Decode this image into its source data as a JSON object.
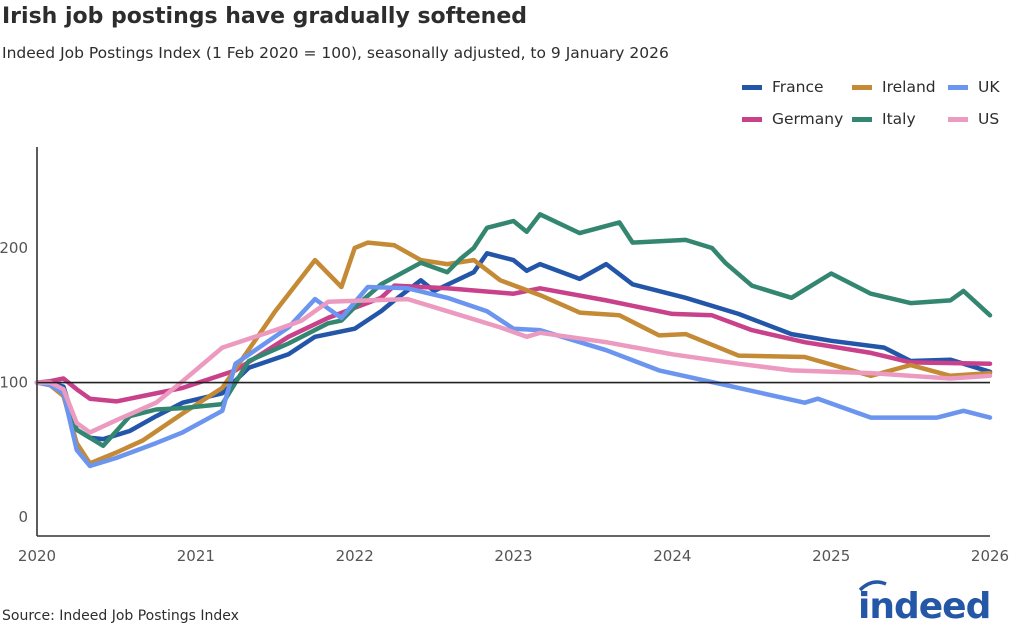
{
  "title": "Irish job postings have gradually softened",
  "subtitle": "Indeed Job Postings Index (1 Feb 2020 = 100), seasonally adjusted, to 9 January 2026",
  "source": "Source: Indeed Job Postings Index",
  "logo_text": "indeed",
  "brand_color": "#2557a7",
  "chart_data": {
    "type": "line",
    "title": "Irish job postings have gradually softened",
    "xlabel": "",
    "ylabel": "",
    "xlim": [
      "2020-01",
      "2026-01"
    ],
    "ylim": [
      -14,
      275
    ],
    "x_ticks": [
      "2020",
      "2021",
      "2022",
      "2023",
      "2024",
      "2025",
      "2026"
    ],
    "y_ticks": [
      "0",
      "100",
      "200"
    ],
    "reference_line": 100,
    "grid": false,
    "legend_position": "top-right",
    "series": [
      {
        "name": "France",
        "color": "#2356a8",
        "points": [
          [
            "2020-01",
            100
          ],
          [
            "2020-02",
            100
          ],
          [
            "2020-03",
            97
          ],
          [
            "2020-04",
            65
          ],
          [
            "2020-05",
            59
          ],
          [
            "2020-06",
            58
          ],
          [
            "2020-08",
            64
          ],
          [
            "2020-10",
            75
          ],
          [
            "2020-12",
            85
          ],
          [
            "2021-03",
            92
          ],
          [
            "2021-05",
            111
          ],
          [
            "2021-08",
            121
          ],
          [
            "2021-10",
            134
          ],
          [
            "2022-01",
            140
          ],
          [
            "2022-03",
            153
          ],
          [
            "2022-04",
            161
          ],
          [
            "2022-06",
            176
          ],
          [
            "2022-07",
            168
          ],
          [
            "2022-10",
            182
          ],
          [
            "2022-11",
            196
          ],
          [
            "2023-01",
            191
          ],
          [
            "2023-02",
            183
          ],
          [
            "2023-03",
            188
          ],
          [
            "2023-06",
            177
          ],
          [
            "2023-08",
            188
          ],
          [
            "2023-10",
            173
          ],
          [
            "2024-02",
            163
          ],
          [
            "2024-06",
            151
          ],
          [
            "2024-10",
            136
          ],
          [
            "2025-01",
            131
          ],
          [
            "2025-05",
            126
          ],
          [
            "2025-07",
            116
          ],
          [
            "2025-10",
            117
          ],
          [
            "2026-01",
            108
          ]
        ]
      },
      {
        "name": "Germany",
        "color": "#c8418a",
        "points": [
          [
            "2020-01",
            100
          ],
          [
            "2020-02",
            101
          ],
          [
            "2020-03",
            103
          ],
          [
            "2020-04",
            95
          ],
          [
            "2020-05",
            88
          ],
          [
            "2020-07",
            86
          ],
          [
            "2020-09",
            90
          ],
          [
            "2020-12",
            96
          ],
          [
            "2021-04",
            109
          ],
          [
            "2021-08",
            134
          ],
          [
            "2021-11",
            148
          ],
          [
            "2022-03",
            163
          ],
          [
            "2022-04",
            172
          ],
          [
            "2022-08",
            170
          ],
          [
            "2023-01",
            166
          ],
          [
            "2023-03",
            170
          ],
          [
            "2023-08",
            161
          ],
          [
            "2024-01",
            151
          ],
          [
            "2024-04",
            150
          ],
          [
            "2024-07",
            139
          ],
          [
            "2024-11",
            130
          ],
          [
            "2025-04",
            122
          ],
          [
            "2025-07",
            115
          ],
          [
            "2026-01",
            114
          ]
        ]
      },
      {
        "name": "Ireland",
        "color": "#c48a35",
        "points": [
          [
            "2020-01",
            100
          ],
          [
            "2020-02",
            98
          ],
          [
            "2020-03",
            90
          ],
          [
            "2020-04",
            55
          ],
          [
            "2020-05",
            40
          ],
          [
            "2020-07",
            48
          ],
          [
            "2020-09",
            57
          ],
          [
            "2020-12",
            77
          ],
          [
            "2021-03",
            96
          ],
          [
            "2021-07",
            153
          ],
          [
            "2021-10",
            191
          ],
          [
            "2021-12",
            171
          ],
          [
            "2022-01",
            200
          ],
          [
            "2022-02",
            204
          ],
          [
            "2022-04",
            202
          ],
          [
            "2022-06",
            191
          ],
          [
            "2022-08",
            188
          ],
          [
            "2022-10",
            191
          ],
          [
            "2022-12",
            176
          ],
          [
            "2023-03",
            165
          ],
          [
            "2023-06",
            152
          ],
          [
            "2023-09",
            150
          ],
          [
            "2023-12",
            135
          ],
          [
            "2024-02",
            136
          ],
          [
            "2024-06",
            120
          ],
          [
            "2024-11",
            119
          ],
          [
            "2025-04",
            105
          ],
          [
            "2025-07",
            113
          ],
          [
            "2025-10",
            105
          ],
          [
            "2026-01",
            107
          ]
        ]
      },
      {
        "name": "Italy",
        "color": "#338670",
        "points": [
          [
            "2020-01",
            100
          ],
          [
            "2020-02",
            99
          ],
          [
            "2020-03",
            92
          ],
          [
            "2020-04",
            65
          ],
          [
            "2020-06",
            53
          ],
          [
            "2020-08",
            75
          ],
          [
            "2020-10",
            80
          ],
          [
            "2020-12",
            81
          ],
          [
            "2021-03",
            84
          ],
          [
            "2021-05",
            116
          ],
          [
            "2021-08",
            129
          ],
          [
            "2021-11",
            144
          ],
          [
            "2021-12",
            146
          ],
          [
            "2022-01",
            156
          ],
          [
            "2022-03",
            173
          ],
          [
            "2022-06",
            189
          ],
          [
            "2022-08",
            182
          ],
          [
            "2022-09",
            192
          ],
          [
            "2022-10",
            200
          ],
          [
            "2022-11",
            215
          ],
          [
            "2023-01",
            220
          ],
          [
            "2023-02",
            212
          ],
          [
            "2023-03",
            225
          ],
          [
            "2023-06",
            211
          ],
          [
            "2023-09",
            219
          ],
          [
            "2023-10",
            204
          ],
          [
            "2024-02",
            206
          ],
          [
            "2024-04",
            200
          ],
          [
            "2024-05",
            189
          ],
          [
            "2024-07",
            172
          ],
          [
            "2024-10",
            163
          ],
          [
            "2025-01",
            181
          ],
          [
            "2025-04",
            166
          ],
          [
            "2025-07",
            159
          ],
          [
            "2025-10",
            161
          ],
          [
            "2025-11",
            168
          ],
          [
            "2026-01",
            150
          ]
        ]
      },
      {
        "name": "UK",
        "color": "#6b95ee",
        "points": [
          [
            "2020-01",
            100
          ],
          [
            "2020-02",
            98
          ],
          [
            "2020-03",
            92
          ],
          [
            "2020-04",
            50
          ],
          [
            "2020-05",
            38
          ],
          [
            "2020-07",
            44
          ],
          [
            "2020-10",
            55
          ],
          [
            "2020-12",
            63
          ],
          [
            "2021-03",
            79
          ],
          [
            "2021-04",
            114
          ],
          [
            "2021-08",
            141
          ],
          [
            "2021-10",
            162
          ],
          [
            "2021-12",
            148
          ],
          [
            "2022-02",
            171
          ],
          [
            "2022-05",
            170
          ],
          [
            "2022-08",
            163
          ],
          [
            "2022-11",
            153
          ],
          [
            "2023-01",
            140
          ],
          [
            "2023-03",
            139
          ],
          [
            "2023-08",
            124
          ],
          [
            "2023-12",
            109
          ],
          [
            "2024-06",
            96
          ],
          [
            "2024-11",
            85
          ],
          [
            "2024-12",
            88
          ],
          [
            "2025-04",
            74
          ],
          [
            "2025-09",
            74
          ],
          [
            "2025-11",
            79
          ],
          [
            "2026-01",
            74
          ]
        ]
      },
      {
        "name": "US",
        "color": "#ec9ac0",
        "points": [
          [
            "2020-01",
            100
          ],
          [
            "2020-02",
            100
          ],
          [
            "2020-03",
            95
          ],
          [
            "2020-04",
            70
          ],
          [
            "2020-05",
            63
          ],
          [
            "2020-07",
            72
          ],
          [
            "2020-10",
            85
          ],
          [
            "2020-12",
            101
          ],
          [
            "2021-03",
            126
          ],
          [
            "2021-07",
            139
          ],
          [
            "2021-09",
            146
          ],
          [
            "2021-11",
            160
          ],
          [
            "2022-02",
            161
          ],
          [
            "2022-05",
            162
          ],
          [
            "2022-08",
            153
          ],
          [
            "2022-12",
            141
          ],
          [
            "2023-02",
            134
          ],
          [
            "2023-03",
            137
          ],
          [
            "2023-08",
            130
          ],
          [
            "2024-01",
            121
          ],
          [
            "2024-06",
            114
          ],
          [
            "2024-10",
            109
          ],
          [
            "2025-04",
            107
          ],
          [
            "2025-10",
            103
          ],
          [
            "2026-01",
            105
          ]
        ]
      }
    ]
  }
}
